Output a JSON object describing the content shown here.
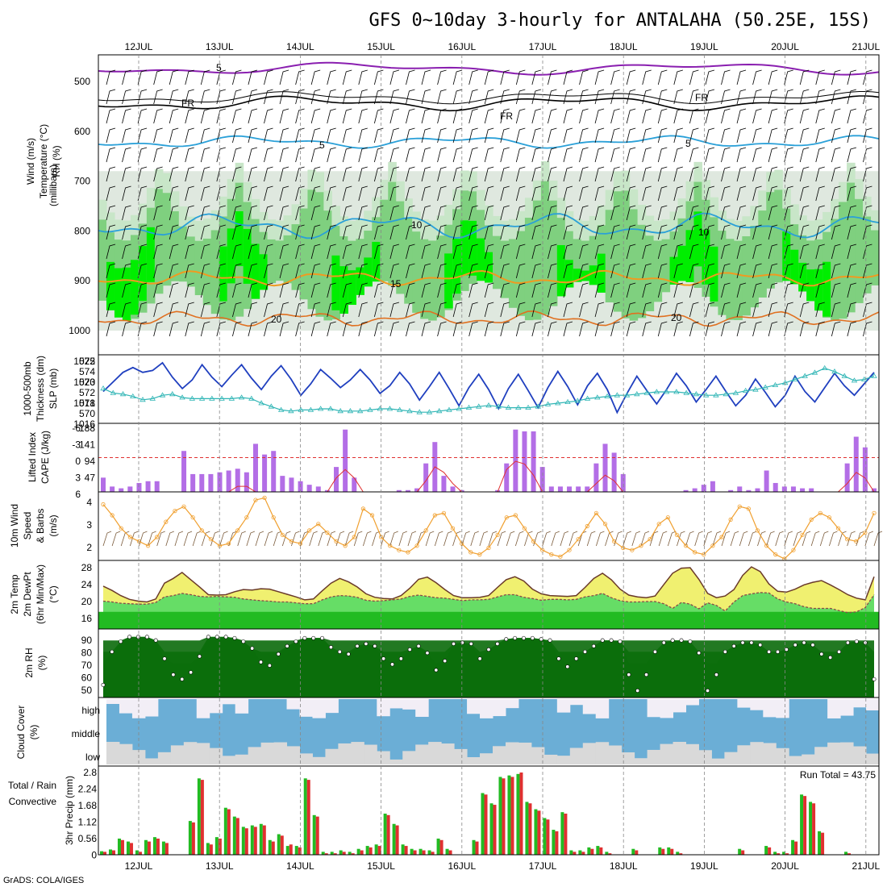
{
  "title": "GFS 0~10day 3-hourly for ANTALAHA (50.25E, 15S)",
  "footer": "GrADS: COLA/IGES",
  "dates": [
    "12JUL",
    "13JUL",
    "14JUL",
    "15JUL",
    "16JUL",
    "17JUL",
    "18JUL",
    "19JUL",
    "20JUL",
    "21JUL"
  ],
  "colors": {
    "rh_light": "#c8e6c8",
    "rh_mid": "#7fd07f",
    "rh_bright": "#00ee00",
    "rh_dark": "#1aa51a",
    "slp": "#1f3fbf",
    "thickness": "#2fb5b5",
    "cape": "#b36ee6",
    "lifted": "#e03030",
    "wind": "#f0a030",
    "temp_fill_hi": "#f0f070",
    "temp_fill_top": "#f0a030",
    "dew_fill": "#22bb22",
    "cloud": "#6baed6",
    "cloud_clear": "#f2eef6",
    "cloud_low": "#d9d9d9",
    "precip_total": "#22bb22",
    "precip_conv": "#e03030"
  },
  "panels": {
    "upper": {
      "labels": [
        "Wind (m/s)",
        "Temperature (°C)",
        "RH (%)",
        "(millibars)"
      ],
      "yticks": [
        "500",
        "600",
        "700",
        "800",
        "900",
        "1000"
      ],
      "contour_labels": [
        "5",
        "FR",
        "FR",
        "FR",
        "5",
        "5",
        "10",
        "10",
        "15",
        "20",
        "20"
      ]
    },
    "slp": {
      "labels": [
        "1000-500mb",
        "Thickness (dm)",
        "SLP (mb)"
      ],
      "left_ticks": [
        "575",
        "574",
        "573",
        "572",
        "571",
        "570"
      ],
      "right_ticks": [
        "1022",
        "1020",
        "1018",
        "1016"
      ]
    },
    "cape": {
      "labels": [
        "Lifted Index",
        "CAPE (J/kg)"
      ],
      "left_ticks": [
        "-6",
        "-3",
        "0",
        "3",
        "6"
      ],
      "right_ticks": [
        "188",
        "141",
        "94",
        "47"
      ]
    },
    "wind10": {
      "labels": [
        "10m Wind",
        "Speed",
        "& Barbs",
        "(m/s)"
      ],
      "yticks": [
        "4",
        "3",
        "2"
      ]
    },
    "temp2m": {
      "labels": [
        "2m Temp",
        "2m DewPt",
        "(6hr Min/Max)",
        "(°C)"
      ],
      "yticks": [
        "28",
        "24",
        "20",
        "16"
      ]
    },
    "rh2m": {
      "labels": [
        "2m RH",
        "(%)"
      ],
      "yticks": [
        "90",
        "80",
        "70",
        "60",
        "50"
      ]
    },
    "cloud": {
      "labels": [
        "Cloud Cover",
        "(%)"
      ],
      "levels": [
        "high",
        "middle",
        "low"
      ]
    },
    "precip": {
      "labels": [
        "Total / Rain",
        "Convective",
        "3hr Precip (mm)"
      ],
      "yticks": [
        "2.8",
        "2.24",
        "1.68",
        "1.12",
        "0.56",
        "0"
      ],
      "run_total": "Run Total = 43.75"
    }
  },
  "chart_data": [
    {
      "type": "line",
      "title": "SLP (mb)",
      "ylim": [
        1016,
        1022.5
      ],
      "series": [
        {
          "name": "SLP (mb)",
          "values": [
            1019,
            1020,
            1021,
            1021.5,
            1021,
            1021.2,
            1022,
            1020.5,
            1019.3,
            1020.2,
            1021.8,
            1020.5,
            1019.5,
            1020.7,
            1021.8,
            1020.4,
            1019.2,
            1020.6,
            1021.7,
            1020.3,
            1018.6,
            1019.8,
            1021.3,
            1020.4,
            1019.4,
            1020.2,
            1021.3,
            1020.2,
            1018.8,
            1019.6,
            1021,
            1019.8,
            1018.1,
            1019.5,
            1021,
            1019.3,
            1017.5,
            1019.4,
            1020.8,
            1019.2,
            1017.2,
            1019.3,
            1020.8,
            1019.1,
            1017.3,
            1019.4,
            1021.1,
            1019.5,
            1017.6,
            1019.6,
            1020.9,
            1019.2,
            1016.8,
            1018.8,
            1020.6,
            1019.1,
            1017.7,
            1019.2,
            1020.9,
            1019.6,
            1017.9,
            1019.2,
            1020.6,
            1019,
            1017.5,
            1018.6,
            1020.3,
            1018.9,
            1017.4,
            1018.6,
            1020.6,
            1019,
            1017.9,
            1019.4,
            1020.9,
            1019.6,
            1018.6,
            1019.8,
            1021
          ]
        },
        {
          "name": "1000-500mb Thickness (dm)",
          "values": [
            572.8,
            572.4,
            572.3,
            572.1,
            571.8,
            571.9,
            572.2,
            572.3,
            572.0,
            571.9,
            571.9,
            571.9,
            571.9,
            571.9,
            572.0,
            571.9,
            571.5,
            571.2,
            570.9,
            570.8,
            570.9,
            570.9,
            571.0,
            571.0,
            570.8,
            570.8,
            570.8,
            570.9,
            571.0,
            571.0,
            570.9,
            570.8,
            570.7,
            570.7,
            570.8,
            570.9,
            571.0,
            571.1,
            571.2,
            571.3,
            571.2,
            571.1,
            571.1,
            571.1,
            571.2,
            571.4,
            571.5,
            571.6,
            571.7,
            571.9,
            572.0,
            572.1,
            572.2,
            572.2,
            572.3,
            572.4,
            572.5,
            572.5,
            572.5,
            572.4,
            572.3,
            572.2,
            572.2,
            572.3,
            572.4,
            572.6,
            572.7,
            572.9,
            573.1,
            573.3,
            573.6,
            573.9,
            574.2,
            574.6,
            574.3,
            573.9,
            573.5,
            573.6,
            573.9
          ]
        }
      ]
    },
    {
      "type": "bar",
      "title": "CAPE (J/kg)",
      "ylim": [
        0,
        188
      ],
      "values": [
        40,
        15,
        10,
        15,
        25,
        30,
        30,
        0,
        0,
        115,
        50,
        50,
        50,
        55,
        60,
        65,
        55,
        135,
        105,
        115,
        45,
        40,
        30,
        20,
        15,
        5,
        70,
        175,
        40,
        0,
        0,
        0,
        0,
        5,
        5,
        10,
        80,
        140,
        45,
        15,
        5,
        0,
        0,
        0,
        5,
        80,
        175,
        170,
        170,
        70,
        15,
        15,
        15,
        15,
        15,
        80,
        135,
        110,
        50,
        0,
        0,
        0,
        0,
        0,
        0,
        5,
        10,
        20,
        30,
        0,
        5,
        15,
        5,
        10,
        60,
        25,
        15,
        15,
        10,
        10,
        0,
        0,
        0,
        80,
        155,
        125,
        10
      ]
    },
    {
      "type": "line",
      "title": "Lifted Index",
      "ylim": [
        -6,
        6
      ],
      "values": [
        6,
        6,
        6,
        6,
        6,
        6,
        6,
        6,
        6,
        6,
        6,
        6,
        6,
        6,
        6,
        5,
        5,
        6,
        6,
        6,
        6,
        6,
        6,
        6,
        6,
        6,
        3.5,
        2,
        3.5,
        6,
        6,
        6,
        6,
        6,
        6,
        6,
        4,
        1.5,
        2.5,
        4.5,
        6,
        6,
        6,
        6,
        6,
        2,
        0.5,
        1,
        3,
        6,
        6,
        6,
        6,
        6,
        6,
        4.5,
        3,
        4,
        6,
        6,
        6,
        6,
        6,
        6,
        6,
        6,
        6,
        6,
        6,
        6,
        6,
        6,
        6,
        6,
        6,
        6,
        6,
        6,
        6,
        6,
        6,
        6,
        6,
        4.5,
        2.5,
        3.5,
        6
      ]
    },
    {
      "type": "line",
      "title": "10m Wind Speed",
      "ylim": [
        1.5,
        4.5
      ],
      "values": [
        4,
        3.5,
        2.9,
        2.5,
        2.3,
        2.1,
        2.5,
        3.2,
        3.7,
        3.9,
        3.4,
        2.8,
        2.4,
        2.1,
        2.2,
        2.8,
        3.4,
        4.2,
        4.3,
        3.4,
        2.6,
        2.3,
        2.2,
        2.8,
        3.1,
        2.7,
        2.3,
        2.1,
        2.5,
        3.8,
        3.5,
        2.5,
        2.1,
        1.9,
        1.8,
        2.1,
        2.8,
        3.5,
        3.6,
        2.9,
        2.2,
        1.8,
        1.7,
        2,
        2.6,
        3.4,
        3.5,
        2.9,
        2.3,
        1.9,
        1.7,
        1.6,
        1.9,
        2.4,
        3,
        3.6,
        3.1,
        2.3,
        2,
        1.9,
        2.1,
        2.4,
        3.1,
        3.4,
        2.6,
        2.1,
        1.8,
        1.7,
        2.1,
        2.5,
        3.3,
        3.9,
        3.8,
        2.8,
        2.1,
        1.7,
        1.5,
        1.9,
        2.6,
        3.3,
        3.6,
        3.4,
        2.9,
        2.4,
        2.3,
        2.7,
        3.6
      ]
    },
    {
      "type": "area",
      "title": "2m Temp",
      "ylim": [
        12,
        28
      ],
      "series": [
        {
          "name": "2m Temp",
          "values": [
            22,
            21,
            19.8,
            18.9,
            18.5,
            18.3,
            19,
            22.7,
            23.8,
            25.2,
            23.5,
            21.8,
            20,
            19.9,
            20,
            20.7,
            21.2,
            21.1,
            21.4,
            21.3,
            20.7,
            20.1,
            19.5,
            18.8,
            19,
            20.9,
            22.7,
            23.8,
            23,
            21.8,
            20.2,
            19.4,
            19.1,
            19,
            19.8,
            21.5,
            23.6,
            24.1,
            22.8,
            21.2,
            19.8,
            19.3,
            19.3,
            19.4,
            19.8,
            21.7,
            23.5,
            24.2,
            23.2,
            21.3,
            20.2,
            19.8,
            19.7,
            19.6,
            19.8,
            21.7,
            23.8,
            25,
            23.5,
            21.3,
            19.9,
            19.5,
            19.3,
            19.7,
            22.4,
            25,
            26.2,
            26.3,
            23.6,
            20.3,
            19.3,
            19.7,
            21.2,
            24.5,
            26.5,
            25.4,
            22.5,
            20.8,
            20.6,
            21.3,
            22.3,
            22.9,
            23.3,
            22.3,
            21.2,
            20,
            19.2,
            18.8,
            24.2
          ]
        },
        {
          "name": "2m DewPt",
          "values": [
            18.5,
            18.3,
            18,
            17.9,
            17.8,
            17.8,
            18.2,
            19.5,
            19.8,
            20.3,
            20,
            19.6,
            19.5,
            19.6,
            19.5,
            19.4,
            19,
            18.8,
            18.6,
            18.5,
            18.3,
            18.3,
            18.1,
            17.9,
            17.9,
            18.8,
            19.5,
            19.8,
            19.7,
            19.4,
            18.7,
            18.5,
            18.6,
            18.8,
            19,
            19.6,
            19.9,
            19.6,
            19.3,
            19.2,
            18.9,
            18.6,
            18.8,
            18.8,
            18.9,
            19.5,
            20,
            20,
            19.4,
            19.1,
            18.7,
            18.9,
            18.9,
            18.8,
            18.9,
            19.5,
            19.8,
            20.3,
            19.3,
            18.6,
            18.3,
            18.3,
            18.4,
            18.4,
            17.9,
            16.8,
            18.2,
            17.8,
            16.7,
            18.1,
            17.5,
            16.2,
            18.3,
            19.8,
            20.2,
            20.5,
            20.4,
            19,
            18.3,
            17.9,
            17.2,
            16.8,
            16.8,
            16.8,
            16.3,
            15.8,
            16,
            17,
            20
          ]
        }
      ]
    },
    {
      "type": "area",
      "title": "2m RH",
      "ylim": [
        40,
        100
      ],
      "values": [
        51,
        80,
        89,
        93,
        93,
        93,
        90,
        74,
        60,
        56,
        62,
        76,
        93,
        93,
        93,
        92,
        89,
        83,
        71,
        68,
        78,
        85,
        89,
        92,
        92,
        92,
        84,
        80,
        78,
        85,
        87,
        85,
        74,
        69,
        74,
        82,
        85,
        79,
        64,
        72,
        87,
        88,
        87,
        74,
        82,
        87,
        91,
        92,
        92,
        92,
        91,
        90,
        74,
        67,
        74,
        80,
        85,
        90,
        90,
        89,
        60,
        46,
        60,
        80,
        88,
        90,
        90,
        89,
        79,
        46,
        60,
        80,
        85,
        88,
        88,
        86,
        80,
        80,
        82,
        86,
        88,
        86,
        78,
        75,
        80,
        88,
        89,
        88,
        56
      ]
    },
    {
      "type": "bar",
      "title": "3hr Precip (mm)",
      "ylim": [
        0,
        2.8
      ],
      "series": [
        {
          "name": "Total",
          "values": [
            0.12,
            0.18,
            0.55,
            0.45,
            0.15,
            0.5,
            0.6,
            0.45,
            0,
            0,
            1.15,
            2.6,
            0.4,
            0.6,
            1.6,
            1.3,
            0.95,
            1.0,
            1.05,
            0.5,
            0.7,
            0.3,
            0.3,
            2.6,
            1.35,
            0.1,
            0.1,
            0.15,
            0.1,
            0.2,
            0.3,
            0.35,
            1.4,
            1.05,
            0.35,
            0.2,
            0.2,
            0.15,
            0.55,
            0.2,
            0,
            0,
            0.5,
            2.1,
            1.75,
            2.65,
            2.7,
            2.75,
            1.8,
            1.55,
            1.25,
            0.85,
            1.45,
            0.15,
            0.15,
            0.25,
            0.3,
            0.1,
            0,
            0,
            0.2,
            0,
            0,
            0.25,
            0.25,
            0.1,
            0,
            0,
            0,
            0,
            0,
            0,
            0.2,
            0,
            0,
            0.3,
            0.1,
            0.1,
            0.5,
            2.05,
            1.8,
            0.8,
            0,
            0,
            0.1,
            0,
            0,
            0
          ]
        },
        {
          "name": "Convective",
          "values": [
            0.1,
            0.15,
            0.5,
            0.4,
            0.1,
            0.45,
            0.55,
            0.4,
            0,
            0,
            1.1,
            2.55,
            0.35,
            0.55,
            1.55,
            1.25,
            0.9,
            0.95,
            1.0,
            0.45,
            0.65,
            0.35,
            0.25,
            2.55,
            1.3,
            0.05,
            0.05,
            0.1,
            0.05,
            0.15,
            0.25,
            0.3,
            1.35,
            1.0,
            0.3,
            0.15,
            0.15,
            0.1,
            0.5,
            0.15,
            0,
            0,
            0.45,
            2.05,
            1.7,
            2.6,
            2.65,
            2.8,
            1.75,
            1.5,
            1.2,
            0.8,
            1.4,
            0.1,
            0.1,
            0.2,
            0.25,
            0.05,
            0,
            0,
            0.15,
            0,
            0,
            0.2,
            0.2,
            0.05,
            0,
            0,
            0,
            0,
            0,
            0,
            0.15,
            0,
            0,
            0.25,
            0.05,
            0.05,
            0.45,
            2.0,
            1.75,
            0.75,
            0,
            0,
            0.05,
            0,
            0,
            0
          ]
        }
      ]
    }
  ]
}
